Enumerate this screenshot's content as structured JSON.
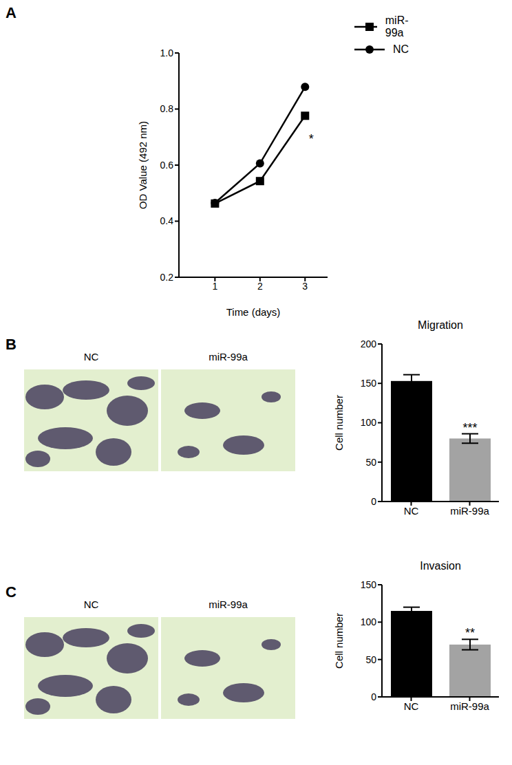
{
  "chart_data": [
    {
      "panel": "A",
      "type": "line",
      "x": [
        1,
        2,
        3
      ],
      "xlim": [
        0.2,
        3.5
      ],
      "xticks": [
        1,
        2,
        3
      ],
      "ylim": [
        0.2,
        1.0
      ],
      "yticks": [
        0.2,
        0.4,
        0.6,
        0.8,
        {
          "value": 1.0,
          "label": "1.0"
        }
      ],
      "x_label": "Time (days)",
      "y_label": "OD Value (492 nm)",
      "legend": "top right",
      "grid": false,
      "series": [
        {
          "name": "miR-99a",
          "color": "#000000",
          "marker": "square",
          "values": [
            0.463,
            0.543,
            0.776
          ],
          "significance": [
            null,
            null,
            "*"
          ]
        },
        {
          "name": "NC",
          "color": "#000000",
          "marker": "circle",
          "values": [
            0.465,
            0.606,
            0.879
          ]
        }
      ]
    },
    {
      "panel": "B",
      "type": "bar",
      "title": "Migration",
      "image_labels": [
        "NC",
        "miR-99a"
      ],
      "categories": [
        "NC",
        "miR-99a"
      ],
      "values": [
        153,
        80
      ],
      "errors": [
        8,
        6
      ],
      "colors": [
        "#000000",
        "#a3a3a3"
      ],
      "significance": [
        null,
        "***"
      ],
      "y_label": "Cell number",
      "ylim": [
        0,
        200
      ],
      "yticks": [
        0,
        50,
        100,
        150,
        200
      ],
      "grid": false
    },
    {
      "panel": "C",
      "type": "bar",
      "title": "Invasion",
      "image_labels": [
        "NC",
        "miR-99a"
      ],
      "categories": [
        "NC",
        "miR-99a"
      ],
      "values": [
        115,
        70
      ],
      "errors": [
        5,
        7
      ],
      "colors": [
        "#000000",
        "#a3a3a3"
      ],
      "significance": [
        null,
        "**"
      ],
      "y_label": "Cell number",
      "ylim": [
        0,
        150
      ],
      "yticks": [
        0,
        50,
        100,
        150
      ],
      "grid": false
    }
  ]
}
